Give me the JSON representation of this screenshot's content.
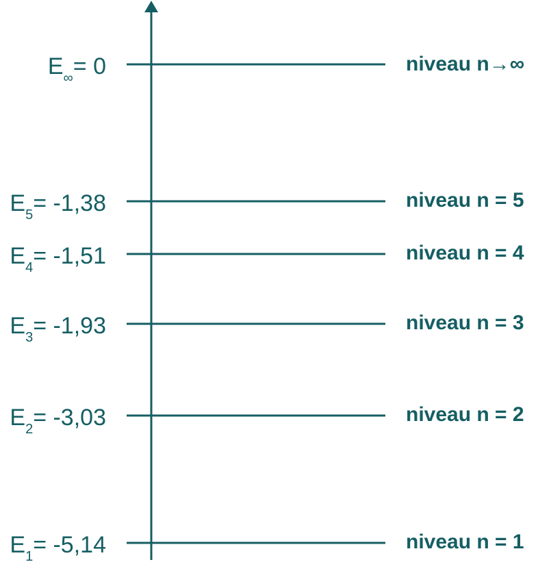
{
  "colors": {
    "primary": "#155e63",
    "background": "#ffffff"
  },
  "levels": [
    {
      "energy_symbol": "E",
      "subscript": "∞",
      "equals_value": "= 0",
      "value": 0,
      "level_label": "niveau n→∞"
    },
    {
      "energy_symbol": "E",
      "subscript": "5",
      "equals_value": "= -1,38",
      "value": -1.38,
      "level_label": "niveau n = 5"
    },
    {
      "energy_symbol": "E",
      "subscript": "4",
      "equals_value": "= -1,51",
      "value": -1.51,
      "level_label": "niveau n = 4"
    },
    {
      "energy_symbol": "E",
      "subscript": "3",
      "equals_value": "= -1,93",
      "value": -1.93,
      "level_label": "niveau n = 3"
    },
    {
      "energy_symbol": "E",
      "subscript": "2",
      "equals_value": "= -3,03",
      "value": -3.03,
      "level_label": "niveau n = 2"
    },
    {
      "energy_symbol": "E",
      "subscript": "1",
      "equals_value": "= -5,14",
      "value": -5.14,
      "level_label": "niveau n = 1"
    }
  ]
}
